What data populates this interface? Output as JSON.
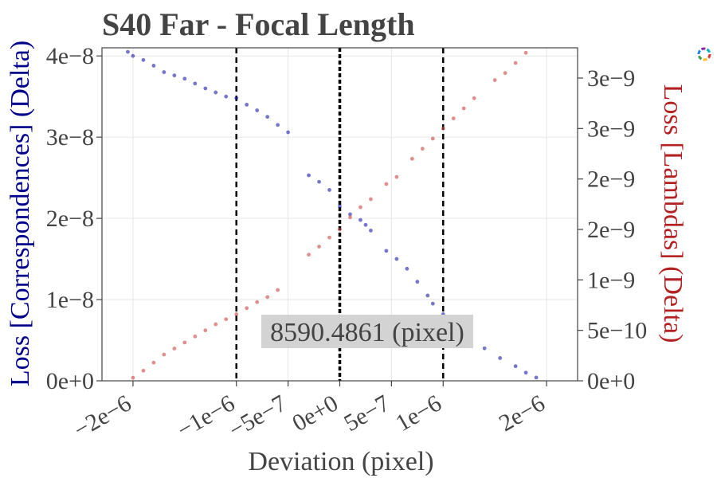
{
  "chart_data": {
    "type": "scatter",
    "title": "S40 Far - Focal Length",
    "xlabel": "Deviation (pixel)",
    "ylabel_left": "Loss [Correspondences] (Delta)",
    "ylabel_right": "Loss [Lambdas] (Delta)",
    "xlim": [
      -2.3e-06,
      2.3e-06
    ],
    "ylim_left": [
      0,
      4.1e-08
    ],
    "ylim_right": [
      0,
      3.3e-09
    ],
    "x_ticks": [
      {
        "value": -2e-06,
        "label": "−2e−6"
      },
      {
        "value": -1e-06,
        "label": "−1e−6"
      },
      {
        "value": -5e-07,
        "label": "−5e−7"
      },
      {
        "value": 0,
        "label": "0e+0"
      },
      {
        "value": 5e-07,
        "label": "5e−7"
      },
      {
        "value": 1e-06,
        "label": "1e−6"
      },
      {
        "value": 2e-06,
        "label": "2e−6"
      }
    ],
    "y_left_ticks": [
      {
        "value": 0,
        "label": "0e+0"
      },
      {
        "value": 1e-08,
        "label": "1e−8"
      },
      {
        "value": 2e-08,
        "label": "2e−8"
      },
      {
        "value": 3e-08,
        "label": "3e−8"
      },
      {
        "value": 4e-08,
        "label": "4e−8"
      }
    ],
    "y_right_ticks": [
      {
        "value": 0,
        "label": "0e+0"
      },
      {
        "value": 5e-10,
        "label": "5e−10"
      },
      {
        "value": 1e-09,
        "label": "1e−9"
      },
      {
        "value": 1.5e-09,
        "label": "2e−9"
      },
      {
        "value": 2e-09,
        "label": "2e−9"
      },
      {
        "value": 2.5e-09,
        "label": "3e−9"
      },
      {
        "value": 3e-09,
        "label": "3e−9"
      }
    ],
    "vlines": [
      -1e-06,
      0,
      1e-06
    ],
    "annotation": "8590.4861 (pixel)",
    "grid": true,
    "series": [
      {
        "axis": "left",
        "color": "#1a1aa6",
        "points": [
          [
            -2.05e-06,
            4.05e-08
          ],
          [
            -2e-06,
            4e-08
          ],
          [
            -1.9e-06,
            3.95e-08
          ],
          [
            -1.8e-06,
            3.88e-08
          ],
          [
            -1.7e-06,
            3.8e-08
          ],
          [
            -1.6e-06,
            3.76e-08
          ],
          [
            -1.5e-06,
            3.72e-08
          ],
          [
            -1.4e-06,
            3.66e-08
          ],
          [
            -1.3e-06,
            3.6e-08
          ],
          [
            -1.2e-06,
            3.55e-08
          ],
          [
            -1.1e-06,
            3.5e-08
          ],
          [
            -1e-06,
            3.48e-08
          ],
          [
            -9e-07,
            3.4e-08
          ],
          [
            -8e-07,
            3.33e-08
          ],
          [
            -7e-07,
            3.25e-08
          ],
          [
            -6e-07,
            3.15e-08
          ],
          [
            -5e-07,
            3.06e-08
          ],
          [
            -3e-07,
            2.53e-08
          ],
          [
            -2e-07,
            2.45e-08
          ],
          [
            -1e-07,
            2.35e-08
          ],
          [
            0.0,
            2.15e-08
          ],
          [
            1e-07,
            2.05e-08
          ],
          [
            2e-07,
            1.98e-08
          ],
          [
            2.5e-07,
            1.92e-08
          ],
          [
            3e-07,
            1.85e-08
          ],
          [
            4.5e-07,
            1.6e-08
          ],
          [
            5.5e-07,
            1.5e-08
          ],
          [
            6.5e-07,
            1.38e-08
          ],
          [
            7.5e-07,
            1.22e-08
          ],
          [
            8.5e-07,
            1.05e-08
          ],
          [
            9e-07,
            9.5e-09
          ],
          [
            1e-06,
            8.2e-09
          ],
          [
            1.1e-06,
            7e-09
          ],
          [
            1.15e-06,
            6.2e-09
          ],
          [
            1.2e-06,
            5.6e-09
          ],
          [
            1.25e-06,
            5e-09
          ],
          [
            1.4e-06,
            4e-09
          ],
          [
            1.55e-06,
            2.8e-09
          ],
          [
            1.7e-06,
            1.8e-09
          ],
          [
            1.8e-06,
            1e-09
          ],
          [
            1.9e-06,
            4e-10
          ]
        ]
      },
      {
        "axis": "right",
        "color": "#cc4444",
        "points": [
          [
            -2e-06,
            3e-11
          ],
          [
            -1.9e-06,
            1e-10
          ],
          [
            -1.8e-06,
            1.8e-10
          ],
          [
            -1.7e-06,
            2.6e-10
          ],
          [
            -1.6e-06,
            3.2e-10
          ],
          [
            -1.5e-06,
            3.8e-10
          ],
          [
            -1.4e-06,
            4.4e-10
          ],
          [
            -1.3e-06,
            5e-10
          ],
          [
            -1.2e-06,
            5.6e-10
          ],
          [
            -1.1e-06,
            6.1e-10
          ],
          [
            -1e-06,
            6.6e-10
          ],
          [
            -9e-07,
            7.2e-10
          ],
          [
            -8e-07,
            7.8e-10
          ],
          [
            -7e-07,
            8.3e-10
          ],
          [
            -6e-07,
            9e-10
          ],
          [
            -3e-07,
            1.25e-09
          ],
          [
            -2e-07,
            1.33e-09
          ],
          [
            -1e-07,
            1.42e-09
          ],
          [
            0.0,
            1.5e-09
          ],
          [
            1e-07,
            1.62e-09
          ],
          [
            2e-07,
            1.72e-09
          ],
          [
            3e-07,
            1.8e-09
          ],
          [
            4.5e-07,
            1.95e-09
          ],
          [
            5.5e-07,
            2.02e-09
          ],
          [
            7e-07,
            2.2e-09
          ],
          [
            8e-07,
            2.3e-09
          ],
          [
            9e-07,
            2.4e-09
          ],
          [
            1e-06,
            2.5e-09
          ],
          [
            1.1e-06,
            2.6e-09
          ],
          [
            1.2e-06,
            2.7e-09
          ],
          [
            1.3e-06,
            2.8e-09
          ],
          [
            1.5e-06,
            2.98e-09
          ],
          [
            1.6e-06,
            3.05e-09
          ],
          [
            1.7e-06,
            3.15e-09
          ],
          [
            1.8e-06,
            3.25e-09
          ]
        ]
      }
    ]
  }
}
